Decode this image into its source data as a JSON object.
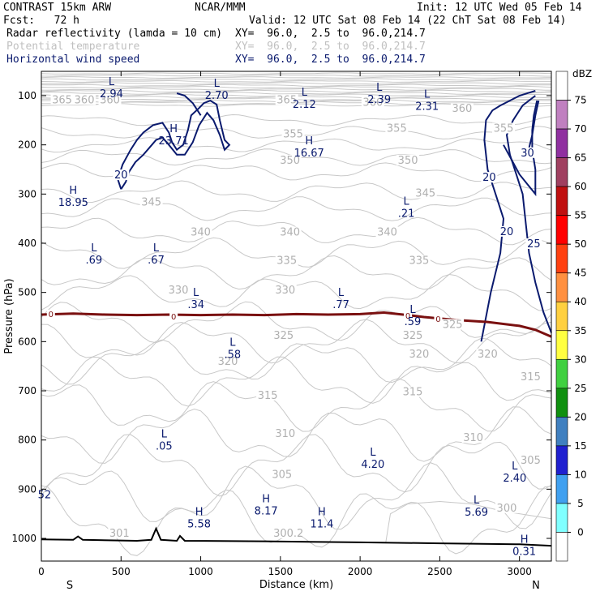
{
  "header": {
    "model": "CONTRAST 15km ARW",
    "org": "NCAR/MMM",
    "init": "Init: 12 UTC Wed 05 Feb 14",
    "fcst": "Fcst:   72 h",
    "valid": "Valid: 12 UTC Sat 08 Feb 14 (22 ChT Sat 08 Feb 14)",
    "fields": [
      {
        "name": "Radar reflectivity (lamda = 10 cm)",
        "xy": "XY=  96.0,  2.5 to  96.0,214.7",
        "color": "#000000"
      },
      {
        "name": "Potential temperature",
        "xy": "XY=  96.0,  2.5 to  96.0,214.7",
        "color": "#c0c0c0"
      },
      {
        "name": "Horizontal wind speed",
        "xy": "XY=  96.0,  2.5 to  96.0,214.7",
        "color": "#0a1a6e"
      }
    ]
  },
  "chart_data": {
    "type": "cross-section contour",
    "xlabel": "Distance (km)",
    "ylabel": "Pressure (hPa)",
    "xlim": [
      0,
      3200
    ],
    "ylim_hpa": [
      1050,
      50
    ],
    "x_ticks": [
      0,
      500,
      1000,
      1500,
      2000,
      2500,
      3000
    ],
    "y_ticks": [
      100,
      200,
      300,
      400,
      500,
      600,
      700,
      800,
      900,
      1000
    ],
    "x_end_labels": {
      "left": "S",
      "right": "N"
    },
    "colorbar": {
      "unit": "dBZ",
      "levels": [
        "75",
        "70",
        "65",
        "60",
        "55",
        "50",
        "45",
        "40",
        "35",
        "30",
        "25",
        "20",
        "15",
        "10",
        "5",
        "0"
      ],
      "colors": [
        "#ffffff",
        "#c080c0",
        "#9030a0",
        "#a04060",
        "#c01010",
        "#ff0000",
        "#ff4010",
        "#ff9040",
        "#ffd040",
        "#ffff40",
        "#40d040",
        "#109010",
        "#4080c0",
        "#2020d0",
        "#40a0f0",
        "#80ffff",
        "#ffffff"
      ]
    },
    "theta_labels": [
      {
        "t": "365",
        "x": 130,
        "p": 112
      },
      {
        "t": "360",
        "x": 430,
        "p": 112
      },
      {
        "t": "360",
        "x": 270,
        "p": 112
      },
      {
        "t": "365",
        "x": 1540,
        "p": 112
      },
      {
        "t": "360",
        "x": 2080,
        "p": 117
      },
      {
        "t": "360",
        "x": 2640,
        "p": 130
      },
      {
        "t": "355",
        "x": 1580,
        "p": 182
      },
      {
        "t": "355",
        "x": 2230,
        "p": 170
      },
      {
        "t": "355",
        "x": 2900,
        "p": 170
      },
      {
        "t": "350",
        "x": 1560,
        "p": 235
      },
      {
        "t": "350",
        "x": 2300,
        "p": 235
      },
      {
        "t": "345",
        "x": 690,
        "p": 320
      },
      {
        "t": "345",
        "x": 2410,
        "p": 302
      },
      {
        "t": "340",
        "x": 1000,
        "p": 381
      },
      {
        "t": "340",
        "x": 1560,
        "p": 381
      },
      {
        "t": "340",
        "x": 2170,
        "p": 381
      },
      {
        "t": "335",
        "x": 1540,
        "p": 439
      },
      {
        "t": "335",
        "x": 2370,
        "p": 439
      },
      {
        "t": "330",
        "x": 860,
        "p": 499
      },
      {
        "t": "330",
        "x": 1530,
        "p": 499
      },
      {
        "t": "325",
        "x": 1520,
        "p": 591
      },
      {
        "t": "325",
        "x": 2330,
        "p": 591
      },
      {
        "t": "325",
        "x": 2580,
        "p": 569
      },
      {
        "t": "320",
        "x": 1170,
        "p": 644
      },
      {
        "t": "320",
        "x": 2370,
        "p": 629
      },
      {
        "t": "320",
        "x": 2800,
        "p": 629
      },
      {
        "t": "315",
        "x": 1420,
        "p": 713
      },
      {
        "t": "315",
        "x": 2330,
        "p": 706
      },
      {
        "t": "315",
        "x": 3070,
        "p": 675
      },
      {
        "t": "310",
        "x": 1530,
        "p": 791
      },
      {
        "t": "310",
        "x": 2710,
        "p": 799
      },
      {
        "t": "305",
        "x": 1510,
        "p": 874
      },
      {
        "t": "305",
        "x": 3070,
        "p": 845
      },
      {
        "t": "300",
        "x": 2920,
        "p": 942
      },
      {
        "t": "301",
        "x": 490,
        "p": 993
      },
      {
        "t": "300.2",
        "x": 1550,
        "p": 993
      }
    ],
    "wind_labels": [
      {
        "t": "20",
        "x": 500,
        "p": 265
      },
      {
        "t": "20",
        "x": 2810,
        "p": 270
      },
      {
        "t": "20",
        "x": 2920,
        "p": 380
      },
      {
        "t": "30",
        "x": 3050,
        "p": 220
      },
      {
        "t": "25",
        "x": 3090,
        "p": 405
      }
    ],
    "hl_markers": [
      {
        "sym": "L",
        "v": "2.94",
        "x": 440,
        "p": 92
      },
      {
        "sym": "L",
        "v": "2.70",
        "x": 1100,
        "p": 95
      },
      {
        "sym": "L",
        "v": "2.12",
        "x": 1650,
        "p": 113
      },
      {
        "sym": "L",
        "v": "2.39",
        "x": 2120,
        "p": 103
      },
      {
        "sym": "L",
        "v": "2.31",
        "x": 2420,
        "p": 117
      },
      {
        "sym": "H",
        "v": "23.71",
        "x": 830,
        "p": 187
      },
      {
        "sym": "H",
        "v": "16.67",
        "x": 1680,
        "p": 212
      },
      {
        "sym": "H",
        "v": "18.95",
        "x": 200,
        "p": 313
      },
      {
        "sym": "L",
        "v": ".21",
        "x": 2290,
        "p": 335
      },
      {
        "sym": "L",
        "v": ".69",
        "x": 330,
        "p": 430
      },
      {
        "sym": "L",
        "v": ".67",
        "x": 720,
        "p": 430
      },
      {
        "sym": "L",
        "v": ".34",
        "x": 970,
        "p": 520
      },
      {
        "sym": "L",
        "v": ".77",
        "x": 1880,
        "p": 520
      },
      {
        "sym": "L",
        "v": ".59",
        "x": 2330,
        "p": 555
      },
      {
        "sym": "L",
        "v": ".58",
        "x": 1200,
        "p": 622
      },
      {
        "sym": "L",
        "v": ".05",
        "x": 770,
        "p": 808
      },
      {
        "sym": "L",
        "v": "4.20",
        "x": 2080,
        "p": 845
      },
      {
        "sym": "L",
        "v": "2.40",
        "x": 2970,
        "p": 873
      },
      {
        "sym": "L",
        "v": "5.69",
        "x": 2730,
        "p": 942
      },
      {
        "sym": "H",
        "v": "8.17",
        "x": 1410,
        "p": 940
      },
      {
        "sym": "H",
        "v": "5.58",
        "x": 990,
        "p": 966
      },
      {
        "sym": "H",
        "v": "11.4",
        "x": 1760,
        "p": 966
      },
      {
        "sym": "H",
        "v": "0.31",
        "x": 3030,
        "p": 1022
      }
    ],
    "edge_labels": [
      {
        "t": "52",
        "x": 20,
        "p": 912,
        "color": "#0a1a6e"
      }
    ],
    "zero_labels": [
      {
        "t": "0",
        "x": 60,
        "p": 545
      },
      {
        "t": "0",
        "x": 830,
        "p": 550
      },
      {
        "t": "0",
        "x": 2300,
        "p": 548
      },
      {
        "t": "0",
        "x": 2490,
        "p": 555
      }
    ],
    "freezing_line": [
      [
        0,
        545
      ],
      [
        200,
        543
      ],
      [
        400,
        545
      ],
      [
        600,
        546
      ],
      [
        800,
        545
      ],
      [
        1000,
        546
      ],
      [
        1200,
        545
      ],
      [
        1400,
        546
      ],
      [
        1600,
        544
      ],
      [
        1800,
        545
      ],
      [
        2000,
        544
      ],
      [
        2150,
        541
      ],
      [
        2300,
        546
      ],
      [
        2400,
        550
      ],
      [
        2600,
        556
      ],
      [
        2800,
        560
      ],
      [
        3000,
        568
      ],
      [
        3100,
        576
      ],
      [
        3200,
        590
      ]
    ],
    "terrain": [
      [
        0,
        1002
      ],
      [
        200,
        1003
      ],
      [
        230,
        996
      ],
      [
        260,
        1003
      ],
      [
        600,
        1005
      ],
      [
        690,
        1003
      ],
      [
        720,
        980
      ],
      [
        750,
        1003
      ],
      [
        850,
        1005
      ],
      [
        870,
        995
      ],
      [
        900,
        1005
      ],
      [
        1400,
        1006
      ],
      [
        2000,
        1008
      ],
      [
        2500,
        1010
      ],
      [
        3000,
        1012
      ],
      [
        3200,
        1015
      ]
    ],
    "wind_contours": [
      [
        [
          500,
          290
        ],
        [
          480,
          270
        ],
        [
          510,
          240
        ],
        [
          560,
          210
        ],
        [
          600,
          190
        ],
        [
          640,
          175
        ],
        [
          700,
          160
        ],
        [
          760,
          155
        ],
        [
          800,
          175
        ],
        [
          820,
          195
        ],
        [
          850,
          210
        ],
        [
          890,
          200
        ],
        [
          920,
          170
        ],
        [
          940,
          140
        ],
        [
          990,
          125
        ],
        [
          1020,
          115
        ],
        [
          1060,
          110
        ],
        [
          1100,
          118
        ],
        [
          1120,
          150
        ],
        [
          1150,
          190
        ],
        [
          1180,
          200
        ],
        [
          1150,
          210
        ],
        [
          1120,
          180
        ],
        [
          1080,
          150
        ],
        [
          1040,
          135
        ],
        [
          990,
          160
        ],
        [
          950,
          195
        ],
        [
          900,
          220
        ],
        [
          850,
          220
        ],
        [
          800,
          200
        ],
        [
          760,
          185
        ],
        [
          720,
          190
        ],
        [
          680,
          205
        ],
        [
          640,
          220
        ],
        [
          590,
          235
        ],
        [
          550,
          255
        ],
        [
          530,
          275
        ],
        [
          500,
          290
        ]
      ],
      [
        [
          1000,
          140
        ],
        [
          950,
          115
        ],
        [
          900,
          100
        ],
        [
          850,
          95
        ]
      ],
      [
        [
          2760,
          600
        ],
        [
          2820,
          500
        ],
        [
          2880,
          420
        ],
        [
          2900,
          350
        ],
        [
          2850,
          300
        ],
        [
          2800,
          250
        ],
        [
          2780,
          190
        ],
        [
          2790,
          150
        ],
        [
          2830,
          130
        ],
        [
          2880,
          120
        ],
        [
          2940,
          110
        ],
        [
          3000,
          100
        ],
        [
          3100,
          90
        ]
      ],
      [
        [
          3200,
          582
        ],
        [
          3150,
          540
        ],
        [
          3100,
          480
        ],
        [
          3060,
          420
        ],
        [
          3040,
          360
        ],
        [
          3020,
          300
        ],
        [
          2980,
          260
        ],
        [
          2940,
          220
        ],
        [
          2920,
          180
        ],
        [
          2960,
          150
        ],
        [
          3020,
          120
        ],
        [
          3100,
          100
        ]
      ],
      [
        [
          2900,
          200
        ],
        [
          2950,
          230
        ],
        [
          3000,
          260
        ],
        [
          3050,
          280
        ],
        [
          3100,
          300
        ],
        [
          3100,
          250
        ],
        [
          3080,
          210
        ],
        [
          3080,
          170
        ],
        [
          3090,
          140
        ],
        [
          3110,
          110
        ]
      ],
      [
        [
          3050,
          220
        ],
        [
          3080,
          180
        ],
        [
          3100,
          140
        ],
        [
          3120,
          110
        ]
      ]
    ]
  }
}
